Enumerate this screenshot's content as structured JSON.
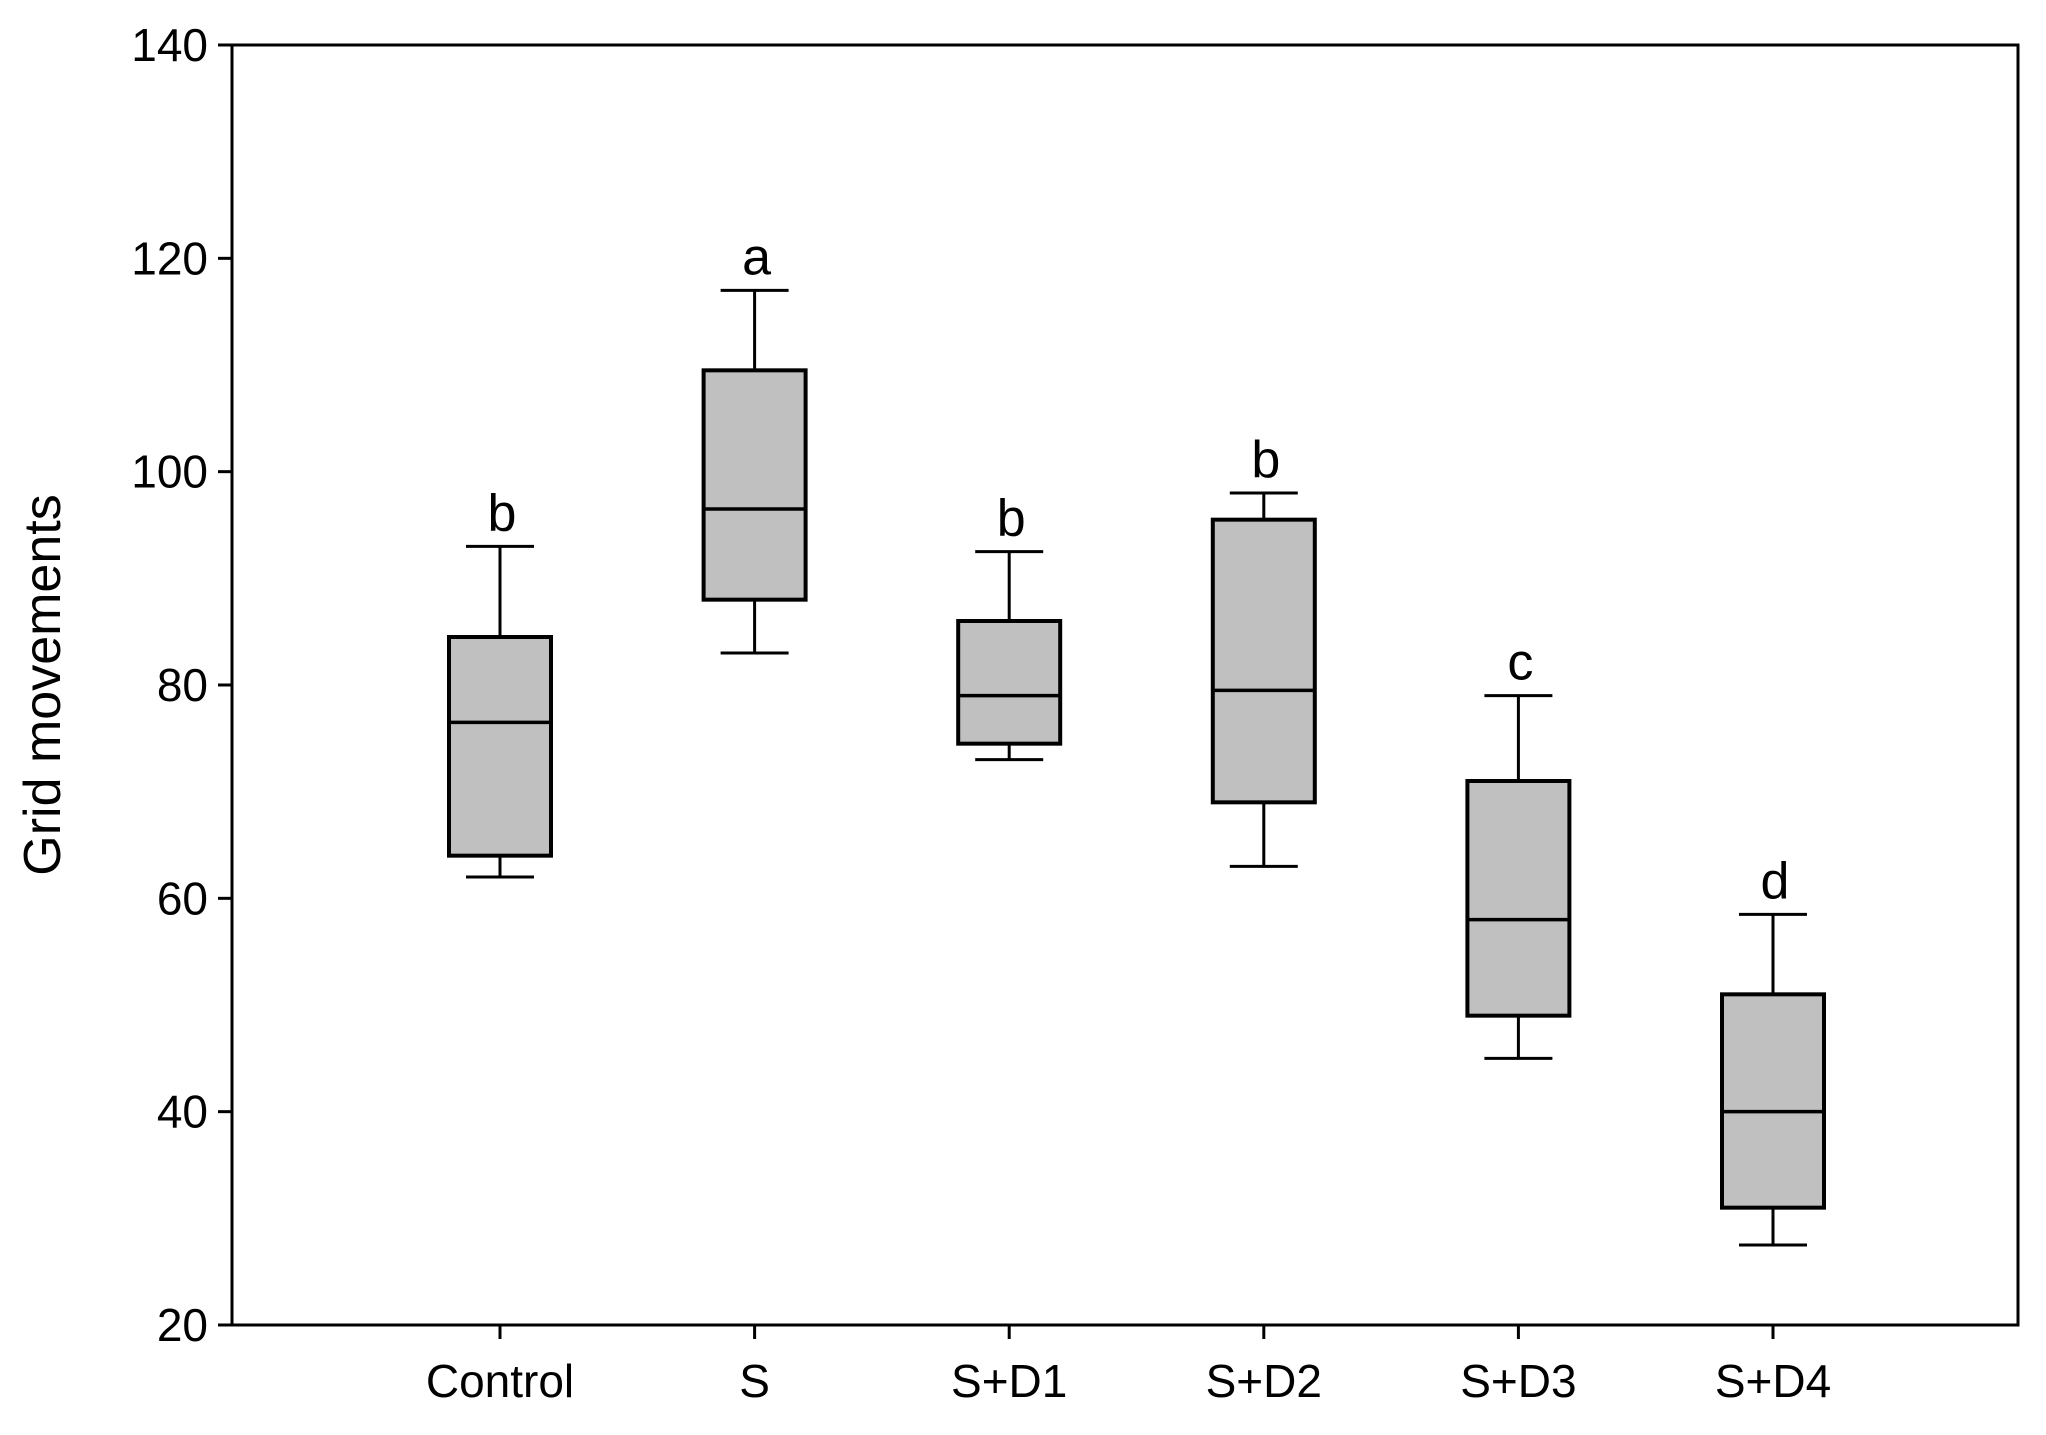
{
  "chart_data": {
    "type": "box",
    "title": "",
    "xlabel": "",
    "ylabel": "Grid movements",
    "ylim": [
      20,
      140
    ],
    "yticks": [
      20,
      40,
      60,
      80,
      100,
      120,
      140
    ],
    "grid": false,
    "legend": null,
    "box_fill": "#c0c0c0",
    "line_color": "#000000",
    "categories": [
      "Control",
      "S",
      "S+D1",
      "S+D2",
      "S+D3",
      "S+D4"
    ],
    "boxes": [
      {
        "category": "Control",
        "whisker_low": 62,
        "q1": 64,
        "median": 76.5,
        "q3": 84.5,
        "whisker_high": 93,
        "significance": "b"
      },
      {
        "category": "S",
        "whisker_low": 83,
        "q1": 88,
        "median": 96.5,
        "q3": 109.5,
        "whisker_high": 117,
        "significance": "a"
      },
      {
        "category": "S+D1",
        "whisker_low": 73,
        "q1": 74.5,
        "median": 79,
        "q3": 86,
        "whisker_high": 92.5,
        "significance": "b"
      },
      {
        "category": "S+D2",
        "whisker_low": 63,
        "q1": 69,
        "median": 79.5,
        "q3": 95.5,
        "whisker_high": 98,
        "significance": "b"
      },
      {
        "category": "S+D3",
        "whisker_low": 45,
        "q1": 49,
        "median": 58,
        "q3": 71,
        "whisker_high": 79,
        "significance": "c"
      },
      {
        "category": "S+D4",
        "whisker_low": 27.5,
        "q1": 31,
        "median": 40,
        "q3": 51,
        "whisker_high": 58.5,
        "significance": "d"
      }
    ]
  }
}
